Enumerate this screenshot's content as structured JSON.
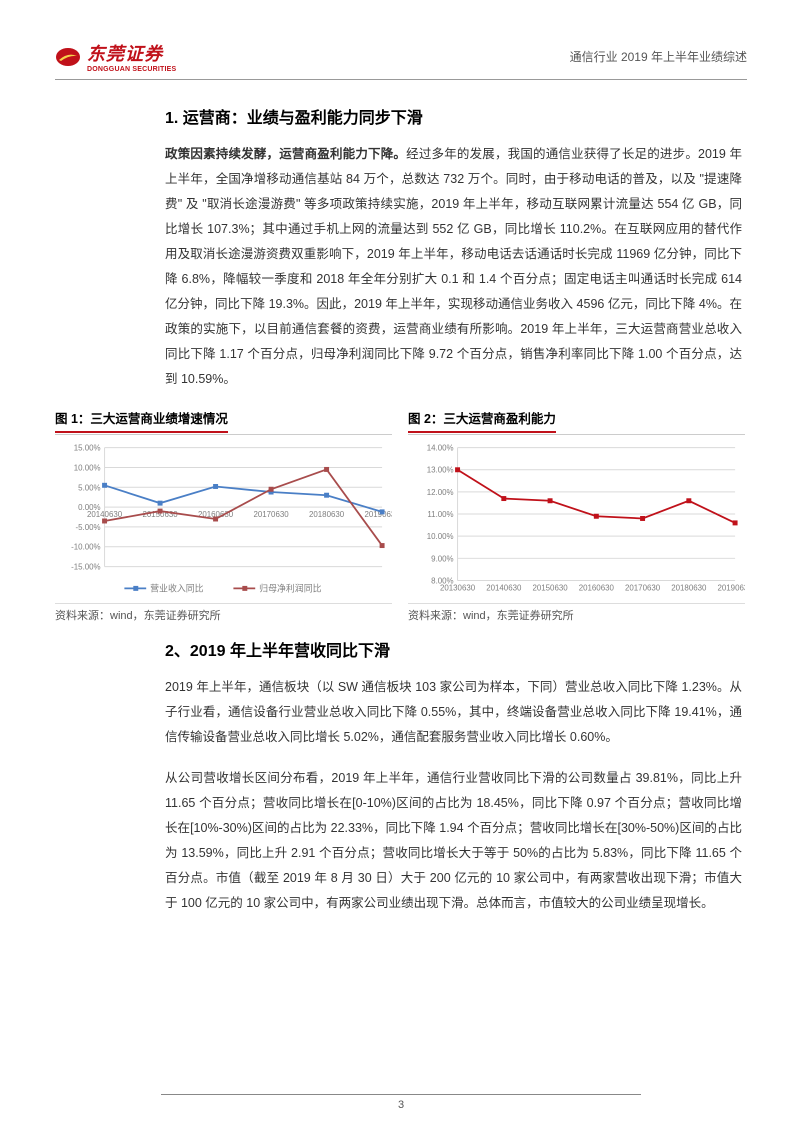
{
  "header": {
    "logo_cn": "东莞证券",
    "logo_en": "DONGGUAN SECURITIES",
    "right_text": "通信行业 2019 年上半年业绩综述"
  },
  "section1": {
    "title": "1. 运营商：业绩与盈利能力同步下滑",
    "lead": "政策因素持续发酵，运营商盈利能力下降。",
    "body": "经过多年的发展，我国的通信业获得了长足的进步。2019 年上半年，全国净增移动通信基站 84 万个，总数达 732 万个。同时，由于移动电话的普及，以及 \"提速降费\" 及 \"取消长途漫游费\" 等多项政策持续实施，2019 年上半年，移动互联网累计流量达 554 亿 GB，同比增长 107.3%；其中通过手机上网的流量达到 552 亿 GB，同比增长 110.2%。在互联网应用的替代作用及取消长途漫游资费双重影响下，2019 年上半年，移动电话去话通话时长完成 11969 亿分钟，同比下降 6.8%，降幅较一季度和 2018 年全年分别扩大 0.1 和 1.4 个百分点；固定电话主叫通话时长完成 614 亿分钟，同比下降 19.3%。因此，2019 年上半年，实现移动通信业务收入 4596 亿元，同比下降 4%。在政策的实施下，以目前通信套餐的资费，运营商业绩有所影响。2019 年上半年，三大运营商营业总收入同比下降 1.17 个百分点，归母净利润同比下降 9.72 个百分点，销售净利率同比下降 1.00 个百分点，达到 10.59%。"
  },
  "chart1": {
    "title": "图 1：三大运营商业绩增速情况",
    "type": "line",
    "x_labels": [
      "20140630",
      "20150630",
      "20160630",
      "20170630",
      "20180630",
      "20190630"
    ],
    "series": [
      {
        "name": "营业收入同比",
        "color": "#4a7fc6",
        "values": [
          5.5,
          1.0,
          5.2,
          3.8,
          3.0,
          -1.2
        ]
      },
      {
        "name": "归母净利润同比",
        "color": "#a84c4c",
        "values": [
          -3.5,
          -1.0,
          -3.0,
          4.5,
          9.5,
          -9.7
        ]
      }
    ],
    "ylim": [
      -15,
      15
    ],
    "ytick_step": 5,
    "y_format": "percent",
    "grid_color": "#d9d9d9",
    "axis_color": "#bfbfbf",
    "font_size_axis": 8,
    "font_size_legend": 9,
    "background_color": "#ffffff",
    "source": "资料来源：wind，东莞证券研究所"
  },
  "chart2": {
    "title": "图 2：三大运营商盈利能力",
    "type": "line",
    "x_labels": [
      "20130630",
      "20140630",
      "20150630",
      "20160630",
      "20170630",
      "20180630",
      "20190630"
    ],
    "series": [
      {
        "name": "",
        "color": "#c0111a",
        "values": [
          13.0,
          11.7,
          11.6,
          10.9,
          10.8,
          11.6,
          10.6
        ]
      }
    ],
    "ylim": [
      8,
      14
    ],
    "ytick_step": 1,
    "y_format": "percent",
    "grid_color": "#d9d9d9",
    "axis_color": "#bfbfbf",
    "font_size_axis": 8,
    "background_color": "#ffffff",
    "source": "资料来源：wind，东莞证券研究所"
  },
  "section2": {
    "title": "2、2019 年上半年营收同比下滑",
    "para1": "2019 年上半年，通信板块（以 SW 通信板块 103 家公司为样本，下同）营业总收入同比下降 1.23%。从子行业看，通信设备行业营业总收入同比下降 0.55%，其中，终端设备营业总收入同比下降 19.41%，通信传输设备营业总收入同比增长 5.02%，通信配套服务营业收入同比增长 0.60%。",
    "para2": "从公司营收增长区间分布看，2019 年上半年，通信行业营收同比下滑的公司数量占 39.81%，同比上升 11.65 个百分点；营收同比增长在[0-10%)区间的占比为 18.45%，同比下降 0.97 个百分点；营收同比增长在[10%-30%)区间的占比为 22.33%，同比下降 1.94 个百分点；营收同比增长在[30%-50%)区间的占比为 13.59%，同比上升 2.91 个百分点；营收同比增长大于等于 50%的占比为 5.83%，同比下降 11.65 个百分点。市值（截至 2019 年 8 月 30 日）大于 200 亿元的 10 家公司中，有两家营收出现下滑；市值大于 100 亿元的 10 家公司中，有两家公司业绩出现下滑。总体而言，市值较大的公司业绩呈现增长。"
  },
  "footer": {
    "page_number": "3"
  },
  "colors": {
    "brand_red": "#c0111a",
    "text": "#333333",
    "grid": "#d9d9d9"
  }
}
